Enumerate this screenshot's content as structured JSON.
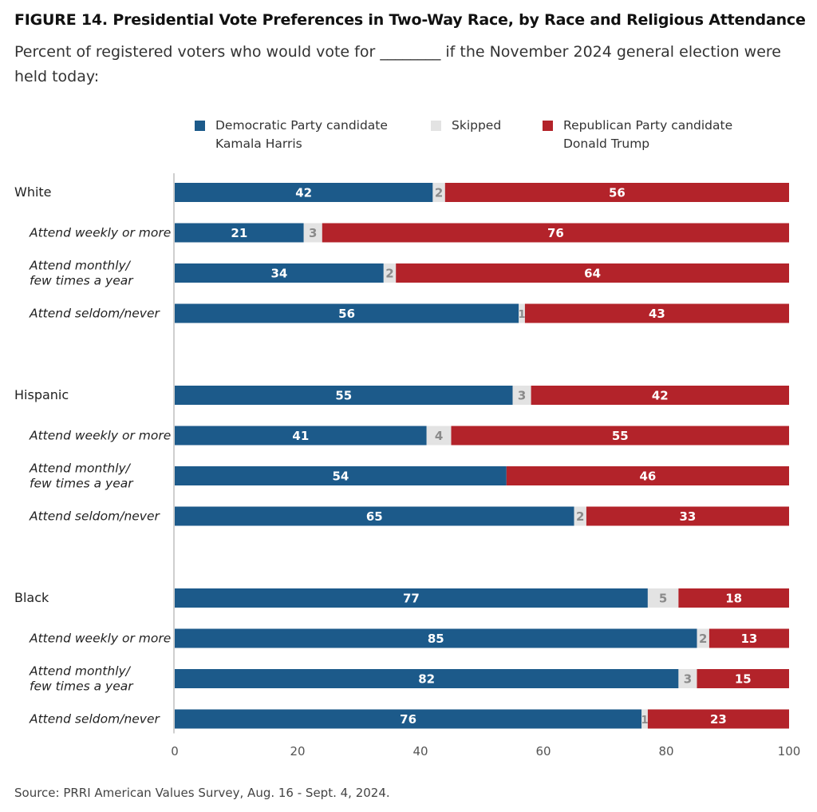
{
  "title": "FIGURE 14.  Presidential Vote Preferences in Two-Way Race, by Race and Religious Attendance",
  "subtitle": "Percent of registered voters who would vote for ________ if the November 2024 general election were held today:",
  "legend": [
    {
      "label": "Democratic Party candidate\nKamala Harris",
      "color": "#1c5a8a"
    },
    {
      "label": "Skipped",
      "color": "#e3e3e3"
    },
    {
      "label": "Republican Party candidate\nDonald Trump",
      "color": "#b3232a"
    }
  ],
  "source": "Source: PRRI American Values Survey, Aug. 16 - Sept. 4, 2024.",
  "chart_data": {
    "type": "bar",
    "orientation": "horizontal",
    "stacked": true,
    "xlim": [
      0,
      100
    ],
    "xticks": [
      "0",
      "20",
      "40",
      "60",
      "80",
      "100"
    ],
    "categories": [
      "White",
      "Attend weekly or more",
      "Attend monthly/\nfew times a year",
      "Attend seldom/never",
      "Hispanic",
      "Attend weekly or more",
      "Attend monthly/\nfew times a year",
      "Attend seldom/never",
      "Black",
      "Attend weekly or more",
      "Attend monthly/\nfew times a year",
      "Attend seldom/never"
    ],
    "category_style": [
      "group",
      "sub",
      "sub",
      "sub",
      "group",
      "sub",
      "sub",
      "sub",
      "group",
      "sub",
      "sub",
      "sub"
    ],
    "series": [
      {
        "name": "Democratic Party candidate Kamala Harris",
        "color": "#1c5a8a",
        "values": [
          42,
          21,
          34,
          56,
          55,
          41,
          54,
          65,
          77,
          85,
          82,
          76
        ],
        "labels": [
          "42",
          "21",
          "34",
          "56",
          "55",
          "41",
          "54",
          "65",
          "77",
          "85",
          "82",
          "76"
        ]
      },
      {
        "name": "Skipped",
        "color": "#e3e3e3",
        "values": [
          2,
          3,
          2,
          1,
          3,
          4,
          0,
          2,
          5,
          2,
          3,
          1
        ],
        "labels": [
          "2",
          "3",
          "2",
          "1",
          "3",
          "4",
          "",
          "2",
          "5",
          "2",
          "3",
          "1"
        ]
      },
      {
        "name": "Republican Party candidate Donald Trump",
        "color": "#b3232a",
        "values": [
          56,
          76,
          64,
          43,
          42,
          55,
          46,
          33,
          18,
          13,
          15,
          23
        ],
        "labels": [
          "56",
          "76",
          "64",
          "43",
          "42",
          "55",
          "46",
          "33",
          "18",
          "13",
          "15",
          "23"
        ]
      }
    ]
  }
}
